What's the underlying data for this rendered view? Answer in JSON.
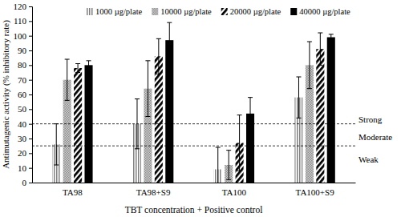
{
  "chart_data": {
    "type": "bar",
    "x_label": "TBT concentration + Positive control",
    "y_label": "Antimutagenic activity (% inhibitory rate)",
    "categories": [
      "TA98",
      "TA98+S9",
      "TA100",
      "TA100+S9"
    ],
    "series": [
      {
        "name": "1000 µg/plate",
        "color": "#808080",
        "values": [
          26,
          40,
          9,
          58
        ],
        "errors": [
          14,
          17,
          15,
          14
        ]
      },
      {
        "name": "10000 µg/plate",
        "color": "#8c8c8c",
        "values": [
          70,
          64,
          12,
          80
        ],
        "errors": [
          14,
          19,
          10,
          16
        ]
      },
      {
        "name": "20000 µg/plate",
        "color": "#000000",
        "values": [
          78,
          86,
          27,
          91
        ],
        "errors": [
          3,
          12,
          19,
          11
        ]
      },
      {
        "name": "40000 µg/plate",
        "color": "#000000",
        "values": [
          80,
          97,
          47,
          99
        ],
        "errors": [
          3,
          12,
          11,
          2
        ]
      }
    ],
    "reference_lines": [
      40,
      25
    ],
    "annotations": [
      {
        "text": "Strong",
        "y": 43
      },
      {
        "text": "Moderate",
        "y": 31
      },
      {
        "text": "Weak",
        "y": 16
      }
    ],
    "ylim": [
      0,
      120
    ],
    "yticks": [
      0,
      10,
      20,
      30,
      40,
      50,
      60,
      70,
      80,
      90,
      100,
      110,
      120
    ],
    "legend": "top"
  }
}
